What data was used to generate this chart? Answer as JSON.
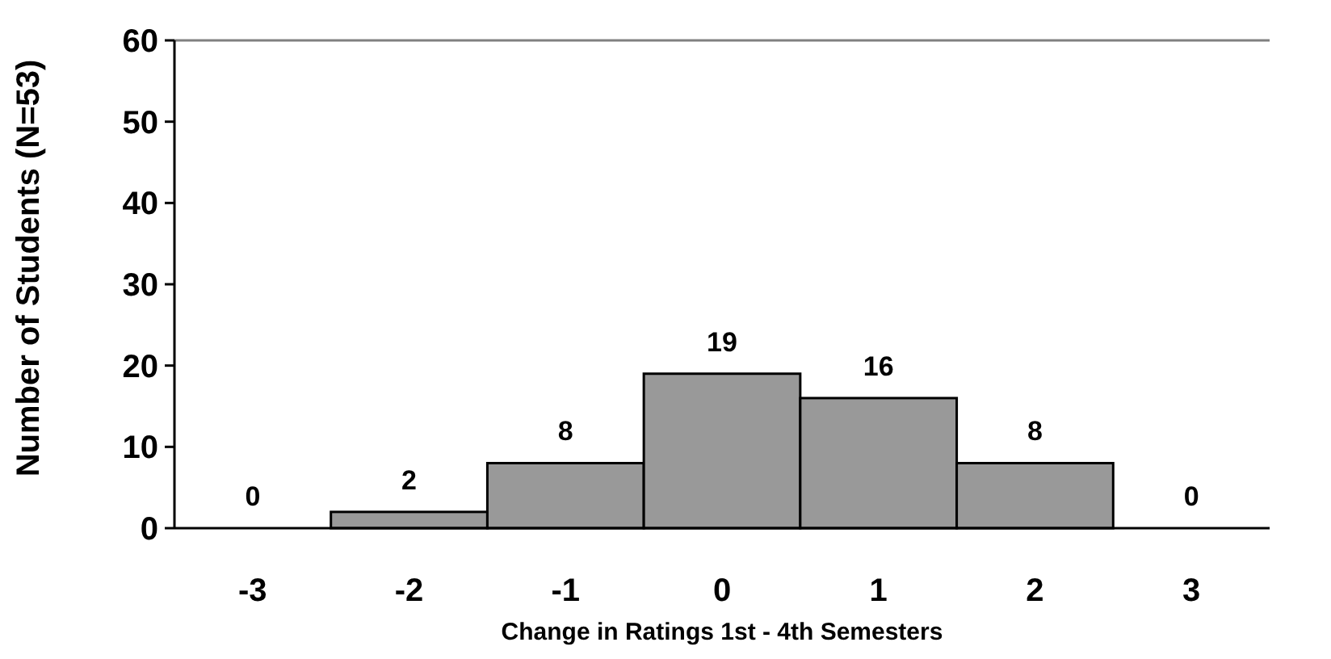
{
  "chart_data": {
    "type": "bar",
    "xlabel": "Change in Ratings 1st - 4th Semesters",
    "ylabel": "Number of Students (N=53)",
    "categories": [
      "-3",
      "-2",
      "-1",
      "0",
      "1",
      "2",
      "3"
    ],
    "values": [
      0,
      2,
      8,
      19,
      16,
      8,
      0
    ],
    "color": "#999999",
    "ylim": [
      0,
      60
    ],
    "yticks": [
      0,
      10,
      20,
      30,
      40,
      50,
      60
    ],
    "data_labels": true
  }
}
